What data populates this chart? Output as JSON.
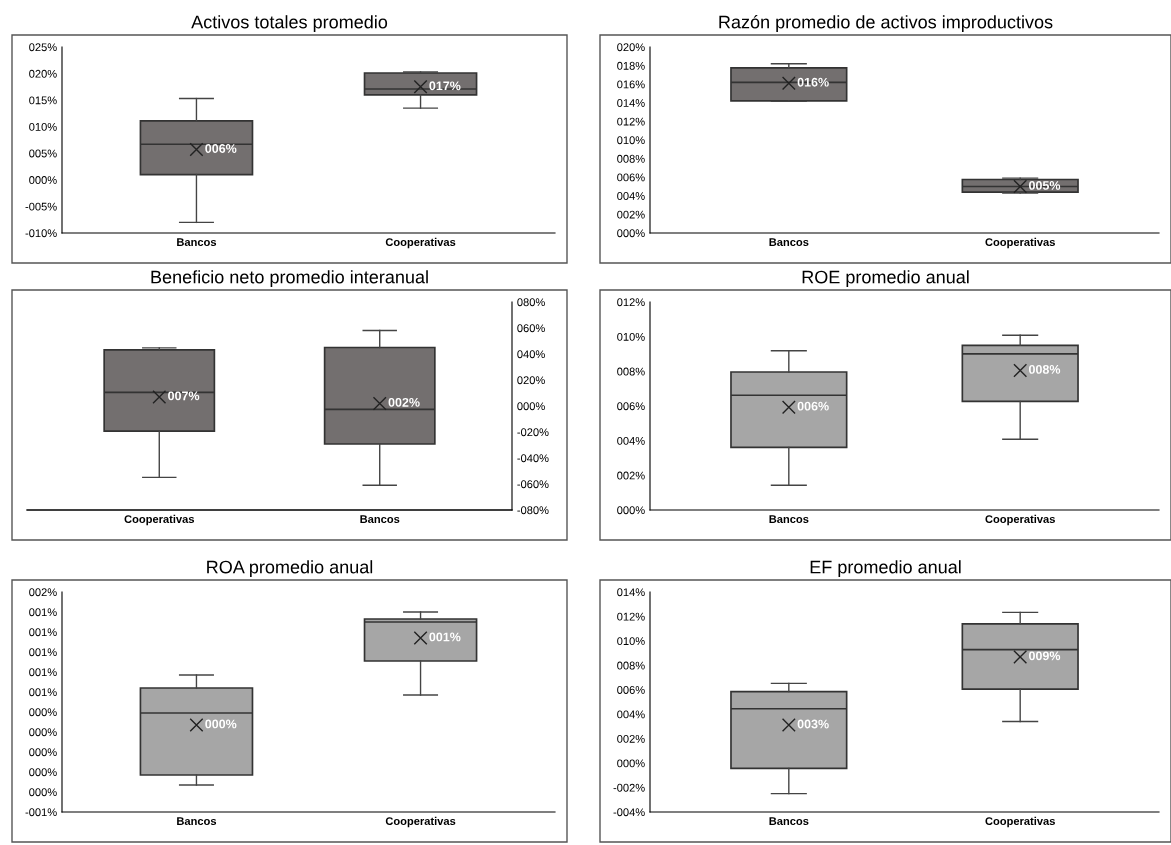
{
  "chart_data": [
    {
      "type": "box",
      "title": "Activos totales promedio",
      "categories": [
        "Bancos",
        "Cooperativas"
      ],
      "series": [
        {
          "color": "#736f6f",
          "boxes": [
            {
              "low": -8.0,
              "q1": 1.0,
              "median": 6.7,
              "q3": 11.1,
              "high": 15.3,
              "mean": 5.7
            },
            {
              "low": 13.5,
              "q1": 16.0,
              "median": 17.1,
              "q3": 20.1,
              "high": 20.3,
              "mean": 17.5
            }
          ]
        }
      ],
      "ylim": [
        -10,
        25
      ],
      "yticks": [
        {
          "value": -10,
          "label": "-010%"
        },
        {
          "value": -5,
          "label": "-005%"
        },
        {
          "value": 0,
          "label": "000%"
        },
        {
          "value": 5,
          "label": "005%"
        },
        {
          "value": 10,
          "label": "010%"
        },
        {
          "value": 15,
          "label": "015%"
        },
        {
          "value": 20,
          "label": "020%"
        },
        {
          "value": 25,
          "label": "025%"
        }
      ],
      "annotations": [
        "006%",
        "017%"
      ],
      "marker": "cross"
    },
    {
      "type": "box",
      "title": "Razón promedio de activos improductivos",
      "categories": [
        "Bancos",
        "Cooperativas"
      ],
      "series": [
        {
          "color": "#736f6f",
          "boxes": [
            {
              "low": 14.15,
              "q1": 14.2,
              "median": 16.2,
              "q3": 17.75,
              "high": 18.2,
              "mean": 16.1
            },
            {
              "low": 4.3,
              "q1": 4.4,
              "median": 5.0,
              "q3": 5.75,
              "high": 5.9,
              "mean": 5.0
            }
          ]
        }
      ],
      "ylim": [
        0,
        20
      ],
      "yticks": [
        {
          "value": 0,
          "label": "000%"
        },
        {
          "value": 2,
          "label": "002%"
        },
        {
          "value": 4,
          "label": "004%"
        },
        {
          "value": 6,
          "label": "006%"
        },
        {
          "value": 8,
          "label": "008%"
        },
        {
          "value": 10,
          "label": "010%"
        },
        {
          "value": 12,
          "label": "012%"
        },
        {
          "value": 14,
          "label": "014%"
        },
        {
          "value": 16,
          "label": "016%"
        },
        {
          "value": 18,
          "label": "018%"
        },
        {
          "value": 20,
          "label": "020%"
        }
      ],
      "annotations": [
        "016%",
        "005%"
      ],
      "marker": "cross"
    },
    {
      "type": "box",
      "title": "Beneficio neto promedio interanual",
      "categories": [
        "Cooperativas",
        "Bancos"
      ],
      "series": [
        {
          "color": "#736f6f",
          "axis": "y2",
          "boxes": [
            {
              "low": -54.9,
              "q1": -19.3,
              "median": 10.5,
              "q3": 43.2,
              "high": 44.7,
              "mean": 7.0
            },
            {
              "low": -61.0,
              "q1": -29.2,
              "median": -2.6,
              "q3": 45.0,
              "high": 58.1,
              "mean": 2.0
            }
          ]
        }
      ],
      "y2lim": [
        -80,
        80
      ],
      "y2ticks": [
        {
          "value": -80,
          "label": "-080%"
        },
        {
          "value": -60,
          "label": "-060%"
        },
        {
          "value": -40,
          "label": "-040%"
        },
        {
          "value": -20,
          "label": "-020%"
        },
        {
          "value": 0,
          "label": "000%"
        },
        {
          "value": 20,
          "label": "020%"
        },
        {
          "value": 40,
          "label": "040%"
        },
        {
          "value": 60,
          "label": "060%"
        },
        {
          "value": 80,
          "label": "080%"
        }
      ],
      "annotations": [
        "007%",
        "002%"
      ],
      "marker": "cross"
    },
    {
      "type": "box",
      "title": "ROE promedio anual",
      "categories": [
        "Bancos",
        "Cooperativas"
      ],
      "series": [
        {
          "color": "#a6a6a6",
          "boxes": [
            {
              "low": 1.43,
              "q1": 3.61,
              "median": 6.62,
              "q3": 7.96,
              "high": 9.19,
              "mean": 5.93
            },
            {
              "low": 4.08,
              "q1": 6.27,
              "median": 9.01,
              "q3": 9.5,
              "high": 10.08,
              "mean": 8.05
            }
          ]
        }
      ],
      "ylim": [
        0,
        12
      ],
      "yticks": [
        {
          "value": 0,
          "label": "000%"
        },
        {
          "value": 2,
          "label": "002%"
        },
        {
          "value": 4,
          "label": "004%"
        },
        {
          "value": 6,
          "label": "006%"
        },
        {
          "value": 8,
          "label": "008%"
        },
        {
          "value": 10,
          "label": "010%"
        },
        {
          "value": 12,
          "label": "012%"
        }
      ],
      "annotations": [
        "006%",
        "008%"
      ],
      "marker": "cross"
    },
    {
      "type": "box",
      "title": "ROA promedio anual",
      "categories": [
        "Bancos",
        "Cooperativas"
      ],
      "series": [
        {
          "color": "#a6a6a6",
          "boxes": [
            {
              "low": -0.33,
              "q1": -0.23,
              "median": 0.39,
              "q3": 0.64,
              "high": 0.77,
              "mean": 0.27
            },
            {
              "low": 0.57,
              "q1": 0.91,
              "median": 1.3,
              "q3": 1.33,
              "high": 1.4,
              "mean": 1.14
            }
          ]
        }
      ],
      "ylim": [
        -0.6,
        1.6
      ],
      "yticks": [
        {
          "value": -0.6,
          "label": "-001%"
        },
        {
          "value": -0.4,
          "label": "000%"
        },
        {
          "value": -0.2,
          "label": "000%"
        },
        {
          "value": 0,
          "label": "000%"
        },
        {
          "value": 0.2,
          "label": "000%"
        },
        {
          "value": 0.4,
          "label": "000%"
        },
        {
          "value": 0.6,
          "label": "001%"
        },
        {
          "value": 0.8,
          "label": "001%"
        },
        {
          "value": 1.0,
          "label": "001%"
        },
        {
          "value": 1.2,
          "label": "001%"
        },
        {
          "value": 1.4,
          "label": "001%"
        },
        {
          "value": 1.6,
          "label": "002%"
        }
      ],
      "annotations": [
        "000%",
        "001%"
      ],
      "marker": "cross"
    },
    {
      "type": "box",
      "title": "EF promedio anual",
      "categories": [
        "Bancos",
        "Cooperativas"
      ],
      "series": [
        {
          "color": "#a6a6a6",
          "boxes": [
            {
              "low": -2.5,
              "q1": -0.43,
              "median": 4.45,
              "q3": 5.85,
              "high": 6.52,
              "mean": 3.11
            },
            {
              "low": 3.41,
              "q1": 6.05,
              "median": 9.29,
              "q3": 11.39,
              "high": 12.33,
              "mean": 8.69
            }
          ]
        }
      ],
      "ylim": [
        -4,
        14
      ],
      "yticks": [
        {
          "value": -4,
          "label": "-004%"
        },
        {
          "value": -2,
          "label": "-002%"
        },
        {
          "value": 0,
          "label": "000%"
        },
        {
          "value": 2,
          "label": "002%"
        },
        {
          "value": 4,
          "label": "004%"
        },
        {
          "value": 6,
          "label": "006%"
        },
        {
          "value": 8,
          "label": "008%"
        },
        {
          "value": 10,
          "label": "010%"
        },
        {
          "value": 12,
          "label": "012%"
        },
        {
          "value": 14,
          "label": "014%"
        }
      ],
      "annotations": [
        "003%",
        "009%"
      ],
      "marker": "cross"
    }
  ]
}
